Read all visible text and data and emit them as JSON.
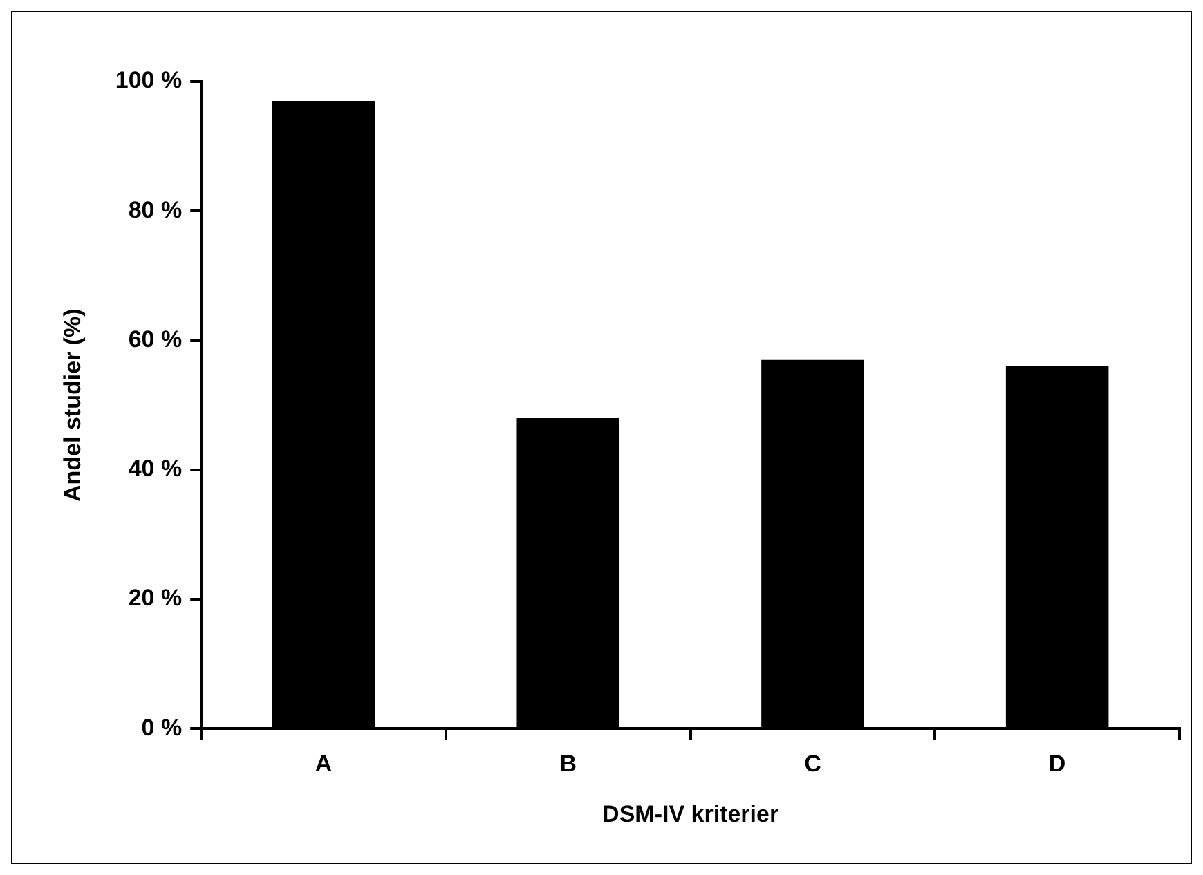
{
  "chart_data": {
    "type": "bar",
    "xlabel": "DSM-IV kriterier",
    "ylabel": "Andel studier (%)",
    "categories": [
      "A",
      "B",
      "C",
      "D"
    ],
    "values": [
      97,
      48,
      57,
      56
    ],
    "color": "#000000",
    "ylim": [
      0,
      100
    ],
    "yticks": [
      {
        "value": 0,
        "label": "0 %"
      },
      {
        "value": 20,
        "label": "20 %"
      },
      {
        "value": 40,
        "label": "40 %"
      },
      {
        "value": 60,
        "label": "60 %"
      },
      {
        "value": 80,
        "label": "80 %"
      },
      {
        "value": 100,
        "label": "100 %"
      }
    ],
    "grid": false,
    "legend": false
  }
}
